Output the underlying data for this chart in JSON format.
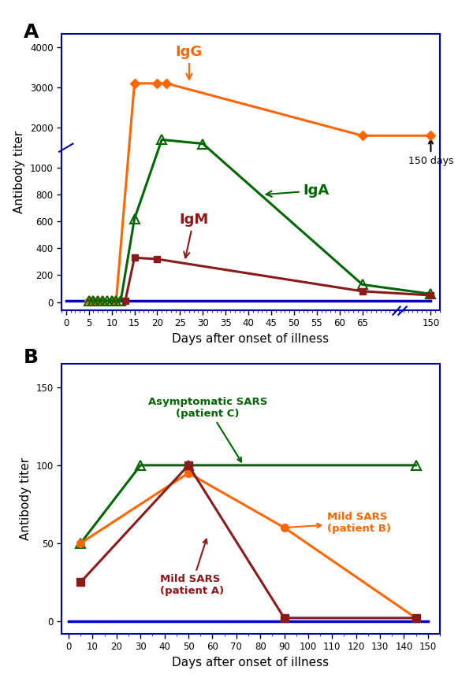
{
  "panelA": {
    "IgG": {
      "x": [
        5,
        6,
        7,
        8,
        10,
        11,
        15,
        20,
        22,
        65,
        150
      ],
      "y": [
        10,
        10,
        10,
        10,
        10,
        10,
        3100,
        3100,
        3100,
        1800,
        1800
      ],
      "color": "#FF6600",
      "marker": "D",
      "markersize": 6,
      "linewidth": 2.2
    },
    "IgA": {
      "x": [
        5,
        6,
        7,
        8,
        9,
        10,
        11,
        12,
        15,
        21,
        30,
        65,
        150
      ],
      "y": [
        10,
        10,
        10,
        10,
        10,
        10,
        10,
        10,
        620,
        1700,
        1600,
        130,
        60
      ],
      "color": "#006600",
      "marker": "^",
      "markersize": 8,
      "linewidth": 2.2,
      "markerfacecolor": "none"
    },
    "IgM": {
      "x": [
        13,
        15,
        20,
        65,
        150
      ],
      "y": [
        10,
        330,
        320,
        80,
        50
      ],
      "color": "#8B1A1A",
      "marker": "s",
      "markersize": 6,
      "linewidth": 2.2
    },
    "baseline_x": [
      0,
      150
    ],
    "baseline_y": [
      10,
      10
    ],
    "baseline_color": "#0000CC",
    "baseline_lw": 2.5,
    "x_real": [
      0,
      5,
      10,
      15,
      20,
      25,
      30,
      35,
      40,
      45,
      50,
      55,
      60,
      65,
      150
    ],
    "x_mapped": [
      0,
      5,
      10,
      15,
      20,
      25,
      30,
      35,
      40,
      45,
      50,
      55,
      60,
      65,
      80
    ],
    "xlim_mapped": [
      -1,
      82
    ],
    "xtick_labels": [
      "0",
      "5",
      "10",
      "15",
      "20",
      "25",
      "30",
      "35",
      "40",
      "45",
      "50",
      "55",
      "60",
      "65",
      "150"
    ],
    "y_real": [
      0,
      200,
      400,
      600,
      800,
      1000,
      2000,
      3000,
      4000
    ],
    "y_mapped": [
      0,
      200,
      400,
      600,
      800,
      1000,
      1300,
      1600,
      1900
    ],
    "ylim_mapped": [
      -60,
      2000
    ],
    "ytick_labels": [
      "0",
      "200",
      "400",
      "600",
      "800",
      "1000",
      "2000",
      "3000",
      "4000"
    ],
    "xlabel": "Days after onset of illness",
    "ylabel": "Antibody titer",
    "label": "A"
  },
  "panelB": {
    "patientC": {
      "x": [
        5,
        30,
        50,
        145
      ],
      "y": [
        50,
        100,
        100,
        100
      ],
      "color": "#006600",
      "marker": "^",
      "markersize": 8,
      "linewidth": 2.2,
      "markerfacecolor": "none"
    },
    "patientB": {
      "x": [
        5,
        50,
        90,
        145
      ],
      "y": [
        50,
        95,
        60,
        2
      ],
      "color": "#FF6600",
      "marker": "o",
      "markersize": 7,
      "linewidth": 2.2
    },
    "patientA": {
      "x": [
        5,
        50,
        90,
        145
      ],
      "y": [
        25,
        100,
        2,
        2
      ],
      "color": "#8B1A1A",
      "marker": "s",
      "markersize": 7,
      "linewidth": 2.2
    },
    "baseline_x": [
      0,
      150
    ],
    "baseline_y": [
      0,
      0
    ],
    "baseline_color": "#0000CC",
    "baseline_lw": 2.5,
    "xticks": [
      0,
      10,
      20,
      30,
      40,
      50,
      60,
      70,
      80,
      90,
      100,
      110,
      120,
      130,
      140,
      150
    ],
    "yticks": [
      0,
      50,
      100,
      150
    ],
    "ylim": [
      -8,
      165
    ],
    "xlim": [
      -3,
      155
    ],
    "xlabel": "Days after onset of illness",
    "ylabel": "Antibody titer",
    "label": "B"
  },
  "fig_bg": "#FFFFFF",
  "spine_color": "#0000AA",
  "tick_color": "#0000AA"
}
